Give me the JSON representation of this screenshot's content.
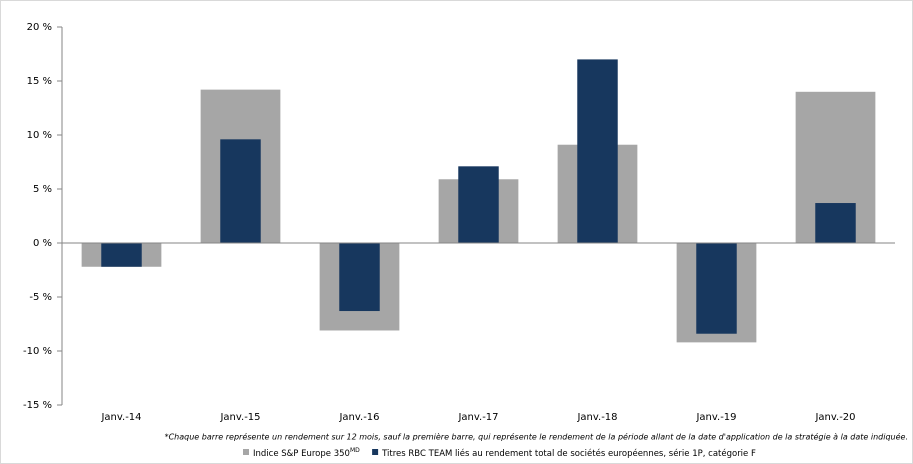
{
  "chart_data": {
    "type": "overlap-bar",
    "categories": [
      "Janv.-14",
      "Janv.-15",
      "Janv.-16",
      "Janv.-17",
      "Janv.-18",
      "Janv.-19",
      "Janv.-20"
    ],
    "series": [
      {
        "name": "Indice S&P Europe 350",
        "name_superscript": "MD",
        "color": "#a6a6a6",
        "values": [
          -2.2,
          14.2,
          -8.1,
          5.9,
          9.1,
          -9.2,
          14.0
        ]
      },
      {
        "name": "Titres RBC TEAM liés au rendement total de sociétés européennes, série 1P, catégorie F",
        "color": "#17375e",
        "values": [
          -2.2,
          9.6,
          -6.3,
          7.1,
          17.0,
          -8.4,
          3.7
        ]
      }
    ],
    "ylim": [
      -15,
      20
    ],
    "yticks": [
      {
        "value": -15,
        "label": "-15 %"
      },
      {
        "value": -10,
        "label": "-10 %"
      },
      {
        "value": -5,
        "label": "-5 %"
      },
      {
        "value": 0,
        "label": "0 %"
      },
      {
        "value": 5,
        "label": "5 %"
      },
      {
        "value": 10,
        "label": "10 %"
      },
      {
        "value": 15,
        "label": "15 %"
      },
      {
        "value": 20,
        "label": "20 %"
      }
    ],
    "footnote": "*Chaque barre représente un rendement sur 12 mois, sauf la première barre, qui représente le rendement de la période allant de la date d'application de la stratégie à la date indiquée."
  }
}
